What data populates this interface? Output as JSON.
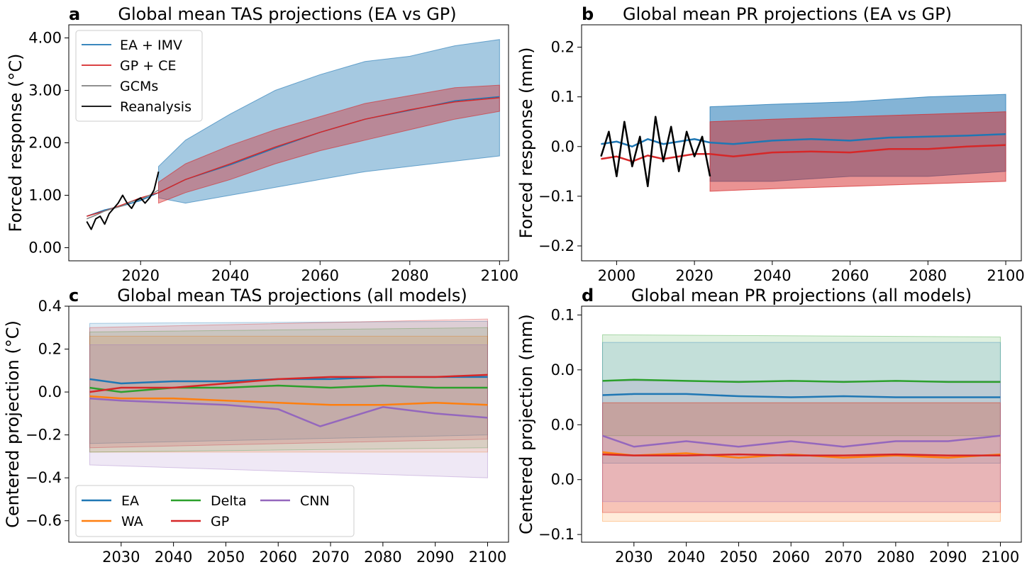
{
  "chart_data": [
    {
      "panel": "a",
      "type": "line",
      "title": "Global mean TAS projections (EA vs GP)",
      "xlabel": "",
      "ylabel": "Forced response (°C)",
      "xlim": [
        2004,
        2102
      ],
      "ylim": [
        -0.25,
        4.25
      ],
      "xticks": [
        2020,
        2040,
        2060,
        2080,
        2100
      ],
      "xtick_labels": [
        "2020",
        "2040",
        "2060",
        "2080",
        "2100"
      ],
      "yticks": [
        0,
        1,
        2,
        3,
        4
      ],
      "ytick_labels": [
        "0.00",
        "1.00",
        "2.00",
        "3.00",
        "4.00"
      ],
      "legend": {
        "placement": "upper-left",
        "ncol": 1
      },
      "bands": [
        {
          "name": "EA + IMV",
          "color": "#1f77b4",
          "opacity": 0.4,
          "x": [
            2024,
            2030,
            2040,
            2050,
            2060,
            2070,
            2080,
            2090,
            2100
          ],
          "lower": [
            0.95,
            0.85,
            1.0,
            1.15,
            1.3,
            1.45,
            1.55,
            1.65,
            1.75
          ],
          "upper": [
            1.55,
            2.05,
            2.55,
            3.0,
            3.3,
            3.55,
            3.65,
            3.85,
            3.97
          ]
        },
        {
          "name": "GP + CE",
          "color": "#d62728",
          "opacity": 0.4,
          "x": [
            2024,
            2030,
            2040,
            2050,
            2060,
            2070,
            2080,
            2090,
            2100
          ],
          "lower": [
            0.85,
            1.05,
            1.3,
            1.6,
            1.85,
            2.05,
            2.25,
            2.45,
            2.6
          ],
          "upper": [
            1.25,
            1.6,
            1.95,
            2.25,
            2.5,
            2.75,
            2.9,
            3.05,
            3.1
          ]
        }
      ],
      "series": [
        {
          "name": "EA + IMV",
          "color": "#1f77b4",
          "width": 1.5,
          "x": [
            2008,
            2012,
            2016,
            2020,
            2024,
            2030,
            2040,
            2050,
            2060,
            2070,
            2080,
            2090,
            2100
          ],
          "y": [
            0.6,
            0.72,
            0.8,
            0.9,
            1.05,
            1.3,
            1.58,
            1.9,
            2.2,
            2.45,
            2.62,
            2.8,
            2.88
          ]
        },
        {
          "name": "GP + CE",
          "color": "#d62728",
          "width": 1.5,
          "x": [
            2008,
            2012,
            2016,
            2020,
            2024,
            2030,
            2040,
            2050,
            2060,
            2070,
            2080,
            2090,
            2100
          ],
          "y": [
            0.6,
            0.7,
            0.82,
            0.95,
            1.05,
            1.3,
            1.6,
            1.92,
            2.2,
            2.45,
            2.63,
            2.78,
            2.86
          ]
        },
        {
          "name": "GCMs",
          "color": "#808080",
          "width": 1.5,
          "x": [
            2008,
            2010,
            2012,
            2014,
            2016,
            2018,
            2020,
            2022,
            2024
          ],
          "y": [
            0.55,
            0.62,
            0.7,
            0.75,
            0.8,
            0.88,
            0.92,
            1.0,
            1.1
          ]
        },
        {
          "name": "Reanalysis",
          "color": "#000000",
          "width": 2,
          "x": [
            2008,
            2009,
            2010,
            2011,
            2012,
            2013,
            2014,
            2015,
            2016,
            2017,
            2018,
            2019,
            2020,
            2021,
            2022,
            2023,
            2024
          ],
          "y": [
            0.5,
            0.35,
            0.55,
            0.6,
            0.45,
            0.65,
            0.75,
            0.85,
            1.0,
            0.85,
            0.75,
            0.9,
            0.95,
            0.85,
            0.95,
            1.1,
            1.45
          ]
        }
      ]
    },
    {
      "panel": "b",
      "type": "line",
      "title": "Global mean PR projections (EA vs GP)",
      "xlabel": "",
      "ylabel": "Forced response (mm)",
      "xlim": [
        1991,
        2104
      ],
      "ylim": [
        -0.23,
        0.245
      ],
      "xticks": [
        2000,
        2020,
        2040,
        2060,
        2080,
        2100
      ],
      "xtick_labels": [
        "2000",
        "2020",
        "2040",
        "2060",
        "2080",
        "2100"
      ],
      "yticks": [
        -0.2,
        -0.1,
        0.0,
        0.1,
        0.2
      ],
      "ytick_labels": [
        "−0.2",
        "−0.1",
        "0.0",
        "0.1",
        "0.2"
      ],
      "bands": [
        {
          "name": "EA",
          "color": "#1f77b4",
          "opacity": 0.55,
          "x": [
            2024,
            2040,
            2060,
            2080,
            2100
          ],
          "lower": [
            -0.07,
            -0.07,
            -0.06,
            -0.06,
            -0.05
          ],
          "upper": [
            0.08,
            0.085,
            0.09,
            0.1,
            0.105
          ]
        },
        {
          "name": "GP",
          "color": "#d62728",
          "opacity": 0.5,
          "x": [
            2024,
            2040,
            2060,
            2080,
            2100
          ],
          "lower": [
            -0.09,
            -0.085,
            -0.08,
            -0.075,
            -0.07
          ],
          "upper": [
            0.05,
            0.055,
            0.06,
            0.065,
            0.07
          ]
        }
      ],
      "series": [
        {
          "name": "EA",
          "color": "#1f77b4",
          "width": 2.5,
          "x": [
            1996,
            2000,
            2004,
            2008,
            2012,
            2016,
            2020,
            2024,
            2030,
            2040,
            2050,
            2060,
            2070,
            2080,
            2090,
            2100
          ],
          "y": [
            0.005,
            0.01,
            0.0,
            0.015,
            0.005,
            0.01,
            0.015,
            0.008,
            0.005,
            0.012,
            0.015,
            0.012,
            0.018,
            0.02,
            0.022,
            0.025
          ]
        },
        {
          "name": "GP",
          "color": "#d62728",
          "width": 2.5,
          "x": [
            1996,
            2000,
            2004,
            2008,
            2012,
            2016,
            2020,
            2024,
            2030,
            2040,
            2050,
            2060,
            2070,
            2080,
            2090,
            2100
          ],
          "y": [
            -0.025,
            -0.02,
            -0.03,
            -0.018,
            -0.025,
            -0.02,
            -0.015,
            -0.015,
            -0.02,
            -0.012,
            -0.01,
            -0.012,
            -0.005,
            -0.005,
            0.0,
            0.003
          ]
        },
        {
          "name": "Reanalysis",
          "color": "#000000",
          "width": 2.5,
          "x": [
            1996,
            1998,
            2000,
            2002,
            2004,
            2006,
            2008,
            2010,
            2012,
            2014,
            2016,
            2018,
            2020,
            2022,
            2024
          ],
          "y": [
            -0.02,
            0.03,
            -0.06,
            0.05,
            -0.04,
            0.02,
            -0.08,
            0.06,
            -0.03,
            0.04,
            -0.05,
            0.03,
            -0.02,
            0.02,
            -0.06
          ]
        }
      ]
    },
    {
      "panel": "c",
      "type": "line",
      "title": "Global mean TAS projections (all models)",
      "xlabel": "",
      "ylabel": "Centered projection (°C)",
      "xlim": [
        2020,
        2104
      ],
      "ylim": [
        -0.7,
        0.4
      ],
      "xticks": [
        2030,
        2040,
        2050,
        2060,
        2070,
        2080,
        2090,
        2100
      ],
      "xtick_labels": [
        "2030",
        "2040",
        "2050",
        "2060",
        "2070",
        "2080",
        "2090",
        "2100"
      ],
      "yticks": [
        -0.6,
        -0.4,
        -0.2,
        0.0,
        0.2,
        0.4
      ],
      "ytick_labels": [
        "−0.6",
        "−0.4",
        "−0.2",
        "0.0",
        "0.2",
        "0.4"
      ],
      "legend": {
        "placement": "lower-left",
        "ncol": 3
      },
      "bands": [
        {
          "name": "EA",
          "color": "#1f77b4",
          "opacity": 0.15,
          "x": [
            2024,
            2100
          ],
          "lower": [
            -0.24,
            -0.2
          ],
          "upper": [
            0.32,
            0.33
          ]
        },
        {
          "name": "WA",
          "color": "#ff7f0e",
          "opacity": 0.15,
          "x": [
            2024,
            2100
          ],
          "lower": [
            -0.28,
            -0.28
          ],
          "upper": [
            0.26,
            0.26
          ]
        },
        {
          "name": "Delta",
          "color": "#2ca02c",
          "opacity": 0.12,
          "x": [
            2024,
            2100
          ],
          "lower": [
            -0.28,
            -0.26
          ],
          "upper": [
            0.28,
            0.3
          ]
        },
        {
          "name": "GP",
          "color": "#d62728",
          "opacity": 0.15,
          "x": [
            2024,
            2100
          ],
          "lower": [
            -0.26,
            -0.22
          ],
          "upper": [
            0.3,
            0.34
          ]
        },
        {
          "name": "CNN",
          "color": "#9467bd",
          "opacity": 0.15,
          "x": [
            2024,
            2100
          ],
          "lower": [
            -0.34,
            -0.4
          ],
          "upper": [
            0.22,
            0.22
          ]
        }
      ],
      "series": [
        {
          "name": "EA",
          "color": "#1f77b4",
          "width": 2.5,
          "x": [
            2024,
            2030,
            2040,
            2050,
            2060,
            2070,
            2080,
            2090,
            2100
          ],
          "y": [
            0.06,
            0.04,
            0.05,
            0.05,
            0.06,
            0.06,
            0.07,
            0.07,
            0.07
          ]
        },
        {
          "name": "WA",
          "color": "#ff7f0e",
          "width": 2.5,
          "x": [
            2024,
            2030,
            2040,
            2050,
            2060,
            2070,
            2080,
            2090,
            2100
          ],
          "y": [
            -0.02,
            -0.03,
            -0.03,
            -0.04,
            -0.05,
            -0.06,
            -0.06,
            -0.05,
            -0.06
          ]
        },
        {
          "name": "Delta",
          "color": "#2ca02c",
          "width": 2.5,
          "x": [
            2024,
            2030,
            2040,
            2050,
            2060,
            2070,
            2080,
            2090,
            2100
          ],
          "y": [
            0.02,
            0.0,
            0.02,
            0.02,
            0.03,
            0.02,
            0.03,
            0.02,
            0.02
          ]
        },
        {
          "name": "GP",
          "color": "#d62728",
          "width": 2.5,
          "x": [
            2024,
            2030,
            2040,
            2050,
            2060,
            2070,
            2080,
            2090,
            2100
          ],
          "y": [
            0.0,
            0.02,
            0.02,
            0.04,
            0.06,
            0.07,
            0.07,
            0.07,
            0.08
          ]
        },
        {
          "name": "CNN",
          "color": "#9467bd",
          "width": 2.5,
          "x": [
            2024,
            2030,
            2040,
            2050,
            2060,
            2068,
            2080,
            2090,
            2100
          ],
          "y": [
            -0.03,
            -0.04,
            -0.05,
            -0.06,
            -0.08,
            -0.16,
            -0.07,
            -0.1,
            -0.12
          ]
        }
      ]
    },
    {
      "panel": "d",
      "type": "line",
      "title": "Global mean PR projections (all models)",
      "xlabel": "",
      "ylabel": "Centered projection (mm)",
      "xlim": [
        2020,
        2104
      ],
      "ylim": [
        -0.107,
        0.108
      ],
      "xticks": [
        2030,
        2040,
        2050,
        2060,
        2070,
        2080,
        2090,
        2100
      ],
      "xtick_labels": [
        "2030",
        "2040",
        "2050",
        "2060",
        "2070",
        "2080",
        "2090",
        "2100"
      ],
      "yticks": [
        -0.1,
        0.0,
        0.1
      ],
      "ytick_labels": [
        "−0.1",
        "0.0",
        "0.1"
      ],
      "minor_yticks": [
        -0.05,
        0.05
      ],
      "minor_ytick_labels": [
        "0.0",
        "0.0"
      ],
      "bands": [
        {
          "name": "Delta",
          "color": "#2ca02c",
          "opacity": 0.15,
          "x": [
            2024,
            2100
          ],
          "lower": [
            -0.01,
            -0.01
          ],
          "upper": [
            0.082,
            0.08
          ]
        },
        {
          "name": "EA",
          "color": "#1f77b4",
          "opacity": 0.15,
          "x": [
            2024,
            2100
          ],
          "lower": [
            -0.035,
            -0.035
          ],
          "upper": [
            0.075,
            0.075
          ]
        },
        {
          "name": "WA",
          "color": "#ff7f0e",
          "opacity": 0.15,
          "x": [
            2024,
            2100
          ],
          "lower": [
            -0.088,
            -0.088
          ],
          "upper": [
            0.02,
            0.02
          ]
        },
        {
          "name": "GP",
          "color": "#d62728",
          "opacity": 0.2,
          "x": [
            2024,
            2100
          ],
          "lower": [
            -0.08,
            -0.08
          ],
          "upper": [
            0.02,
            0.02
          ]
        },
        {
          "name": "CNN",
          "color": "#9467bd",
          "opacity": 0.15,
          "x": [
            2024,
            2100
          ],
          "lower": [
            -0.07,
            -0.07
          ],
          "upper": [
            0.04,
            0.04
          ]
        }
      ],
      "series": [
        {
          "name": "EA",
          "color": "#1f77b4",
          "width": 2.5,
          "x": [
            2024,
            2030,
            2040,
            2050,
            2060,
            2070,
            2080,
            2090,
            2100
          ],
          "y": [
            0.027,
            0.028,
            0.028,
            0.026,
            0.025,
            0.026,
            0.025,
            0.025,
            0.025
          ]
        },
        {
          "name": "WA",
          "color": "#ff7f0e",
          "width": 2.5,
          "x": [
            2024,
            2030,
            2040,
            2050,
            2060,
            2070,
            2080,
            2090,
            2100
          ],
          "y": [
            -0.025,
            -0.028,
            -0.026,
            -0.03,
            -0.027,
            -0.03,
            -0.028,
            -0.03,
            -0.027
          ]
        },
        {
          "name": "Delta",
          "color": "#2ca02c",
          "width": 2.5,
          "x": [
            2024,
            2030,
            2040,
            2050,
            2060,
            2070,
            2080,
            2090,
            2100
          ],
          "y": [
            0.04,
            0.041,
            0.04,
            0.039,
            0.04,
            0.039,
            0.04,
            0.039,
            0.039
          ]
        },
        {
          "name": "GP",
          "color": "#d62728",
          "width": 2.5,
          "x": [
            2024,
            2030,
            2040,
            2050,
            2060,
            2070,
            2080,
            2090,
            2100
          ],
          "y": [
            -0.027,
            -0.028,
            -0.028,
            -0.027,
            -0.028,
            -0.028,
            -0.027,
            -0.028,
            -0.028
          ]
        },
        {
          "name": "CNN",
          "color": "#9467bd",
          "width": 2.5,
          "x": [
            2024,
            2030,
            2040,
            2050,
            2060,
            2070,
            2080,
            2090,
            2100
          ],
          "y": [
            -0.01,
            -0.02,
            -0.015,
            -0.02,
            -0.015,
            -0.02,
            -0.015,
            -0.015,
            -0.01
          ]
        }
      ]
    }
  ]
}
